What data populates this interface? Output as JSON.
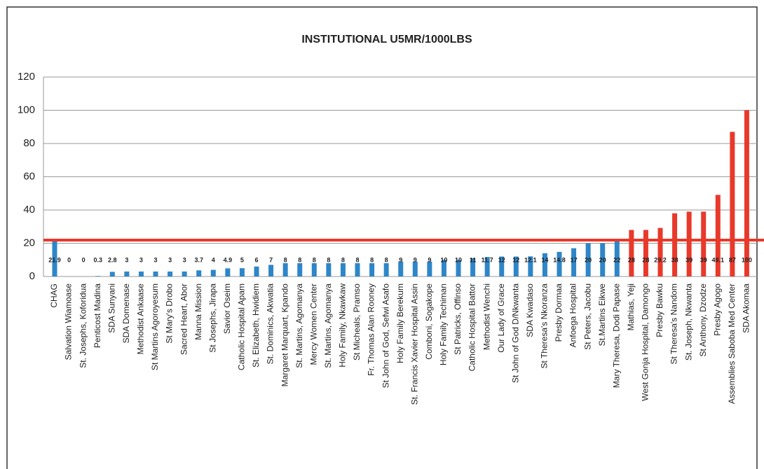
{
  "chart_data": {
    "type": "bar",
    "title": "INSTITUTIONAL U5MR/1000LBS",
    "categories": [
      "CHAG",
      "Salvation Wiamoase",
      "St. Josephs, Koforidua",
      "Penticost Madina",
      "SDA Sunyani",
      "SDA Domenase",
      "Methodist Ankaase",
      "St Martins Agoroyesum",
      "St Mary's Drobo",
      "Sacred Heart, Abor",
      "Manna Mission",
      "St Josephs, Jirapa",
      "Savior Oseim",
      "Catholic Hospital Apam",
      "St. Elizabeth, Hwidiem",
      "St. Dominics, Akwatia",
      "Margaret Marquart, Kpando",
      "St. Martins, Agomanya",
      "Mercy Women Center",
      "St. Martins, Agomanya",
      "Holy Family, Nkawkaw",
      "St Micheals, Pramso",
      "Fr. Thomas Alan Rooney",
      "St John of God, Sefwi Asafo",
      "Holy Family Berekum",
      "St. Francis Xavier Hospital Assin",
      "Comboni, Sogakope",
      "Holy Family Techiman",
      "St Patricks, Offinso",
      "Catholic Hospital Battor",
      "Methodist Wenchi",
      "Our Lady of Grace",
      "St John of God D/Nkwanta",
      "SDA Kwadaso",
      "St Theresa's Nkoranza",
      "Presby Dormaa",
      "Anfoega Hospital",
      "St Peters, Jacobu",
      "St.Martins Eikwe",
      "Mary Theresa, Dodi Papase",
      "Mathias, Yeji",
      "West Gonja Hospital, Damongo",
      "Presby Bawku",
      "St Theresa's Nandom",
      "St. Joseph, Nkwanta",
      "St Anthony, Dzodze",
      "Presby Agogo",
      "Assemblies Saboba Med Center",
      "SDA Akomaa"
    ],
    "values": [
      21.9,
      0,
      0,
      0.3,
      2.8,
      3,
      3,
      3,
      3,
      3,
      3.7,
      4,
      4.9,
      5,
      6,
      7,
      8,
      8,
      8,
      8,
      8,
      8,
      8,
      8,
      9,
      9,
      9,
      10,
      10,
      11,
      11.7,
      12,
      12,
      12.1,
      14,
      14.8,
      17,
      20,
      20,
      22,
      28,
      28,
      29.2,
      38,
      39,
      39,
      49.1,
      87,
      100
    ],
    "colors": [
      "#2e86c8",
      "#2e86c8",
      "#2e86c8",
      "#2e86c8",
      "#2e86c8",
      "#2e86c8",
      "#2e86c8",
      "#2e86c8",
      "#2e86c8",
      "#2e86c8",
      "#2e86c8",
      "#2e86c8",
      "#2e86c8",
      "#2e86c8",
      "#2e86c8",
      "#2e86c8",
      "#2e86c8",
      "#2e86c8",
      "#2e86c8",
      "#2e86c8",
      "#2e86c8",
      "#2e86c8",
      "#2e86c8",
      "#2e86c8",
      "#2e86c8",
      "#2e86c8",
      "#2e86c8",
      "#2e86c8",
      "#2e86c8",
      "#2e86c8",
      "#2e86c8",
      "#2e86c8",
      "#2e86c8",
      "#2e86c8",
      "#2e86c8",
      "#2e86c8",
      "#2e86c8",
      "#2e86c8",
      "#2e86c8",
      "#2e86c8",
      "#e8392a",
      "#e8392a",
      "#e8392a",
      "#e8392a",
      "#e8392a",
      "#e8392a",
      "#e8392a",
      "#e8392a",
      "#e8392a"
    ],
    "reference_color": "#e8392a",
    "ylim": [
      0,
      120
    ],
    "yticks": [
      0,
      20,
      40,
      60,
      80,
      100,
      120
    ],
    "grid": true
  }
}
